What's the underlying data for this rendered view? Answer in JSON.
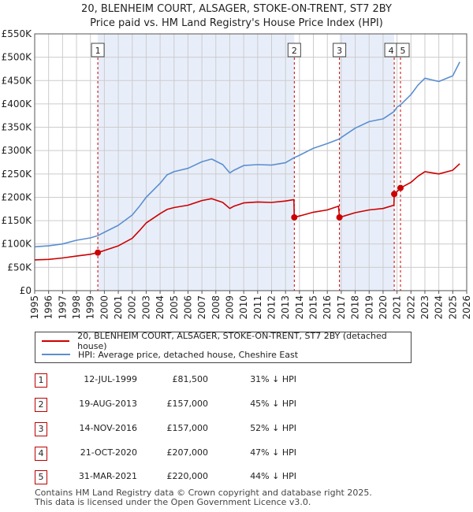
{
  "header": {
    "title_line1": "20, BLENHEIM COURT, ALSAGER, STOKE-ON-TRENT, ST7 2BY",
    "title_line2": "Price paid vs. HM Land Registry's House Price Index (HPI)"
  },
  "colors": {
    "red": "#cc0000",
    "blue": "#5b8fd0",
    "shade": "#e8eef9",
    "grid": "#cccccc"
  },
  "chart_data": {
    "type": "line",
    "title": "Price paid vs. HM Land Registry's House Price Index (HPI)",
    "xlim": [
      1995,
      2026
    ],
    "ylim": [
      0,
      550000
    ],
    "y_ticks": [
      0,
      50000,
      100000,
      150000,
      200000,
      250000,
      300000,
      350000,
      400000,
      450000,
      500000,
      550000
    ],
    "y_tick_labels": [
      "£0",
      "£50K",
      "£100K",
      "£150K",
      "£200K",
      "£250K",
      "£300K",
      "£350K",
      "£400K",
      "£450K",
      "£500K",
      "£550K"
    ],
    "x_ticks": [
      1995,
      1996,
      1997,
      1998,
      1999,
      2000,
      2001,
      2002,
      2003,
      2004,
      2005,
      2006,
      2007,
      2008,
      2009,
      2010,
      2011,
      2012,
      2013,
      2014,
      2015,
      2016,
      2017,
      2018,
      2019,
      2020,
      2021,
      2022,
      2023,
      2024,
      2025,
      2026
    ],
    "x_tick_labels": [
      "1995",
      "1996",
      "1997",
      "1998",
      "1999",
      "2000",
      "2001",
      "2002",
      "2003",
      "2004",
      "2005",
      "2006",
      "2007",
      "2008",
      "2009",
      "2010",
      "2011",
      "2012",
      "2013",
      "2014",
      "2015",
      "2016",
      "2017",
      "2018",
      "2019",
      "2020",
      "2021",
      "2022",
      "2023",
      "2024",
      "2025",
      "2026"
    ],
    "shaded_ranges": [
      [
        1999.53,
        2013.63
      ],
      [
        2016.87,
        2020.8
      ]
    ],
    "series": [
      {
        "name": "HPI: Average price, detached house, Cheshire East",
        "color": "#5b8fd0",
        "x": [
          1995.0,
          1996.0,
          1997.0,
          1998.0,
          1999.0,
          1999.53,
          2000.0,
          2001.0,
          2002.0,
          2002.5,
          2003.0,
          2004.0,
          2004.5,
          2005.0,
          2006.0,
          2007.0,
          2007.7,
          2008.5,
          2009.0,
          2009.3,
          2010.0,
          2011.0,
          2012.0,
          2013.0,
          2013.63,
          2014.0,
          2015.0,
          2016.0,
          2016.87,
          2017.0,
          2018.0,
          2019.0,
          2020.0,
          2020.8,
          2021.0,
          2021.25,
          2022.0,
          2022.5,
          2023.0,
          2024.0,
          2025.0,
          2025.5
        ],
        "values": [
          94000,
          96000,
          100000,
          108000,
          113000,
          118000,
          125000,
          140000,
          162000,
          180000,
          200000,
          230000,
          248000,
          255000,
          262000,
          276000,
          282000,
          270000,
          252000,
          258000,
          268000,
          270000,
          269000,
          274000,
          285000,
          290000,
          305000,
          315000,
          325000,
          328000,
          348000,
          362000,
          368000,
          384000,
          393000,
          398000,
          420000,
          440000,
          455000,
          448000,
          460000,
          490000
        ]
      },
      {
        "name": "20, BLENHEIM COURT, ALSAGER, STOKE-ON-TRENT, ST7 2BY (detached house)",
        "color": "#cc0000",
        "x": [
          1995.0,
          1996.0,
          1997.0,
          1998.0,
          1999.0,
          1999.53,
          2000.0,
          2001.0,
          2002.0,
          2002.5,
          2003.0,
          2004.0,
          2004.5,
          2005.0,
          2006.0,
          2007.0,
          2007.7,
          2008.5,
          2009.0,
          2009.3,
          2010.0,
          2011.0,
          2012.0,
          2013.0,
          2013.6,
          2013.63,
          2014.0,
          2015.0,
          2016.0,
          2016.8,
          2016.87,
          2017.0,
          2018.0,
          2019.0,
          2020.0,
          2020.78,
          2020.8,
          2021.0,
          2021.25,
          2022.0,
          2022.5,
          2023.0,
          2024.0,
          2025.0,
          2025.5
        ],
        "values": [
          66000,
          67000,
          70000,
          74000,
          78000,
          81500,
          86000,
          96000,
          112000,
          128000,
          145000,
          165000,
          174000,
          178000,
          183000,
          193000,
          197000,
          189000,
          176000,
          181000,
          188000,
          190000,
          189000,
          192000,
          195000,
          157000,
          160000,
          168000,
          173000,
          181000,
          157000,
          158000,
          167000,
          173000,
          176000,
          183000,
          207000,
          212000,
          220000,
          232000,
          245000,
          255000,
          250000,
          258000,
          272000
        ]
      }
    ],
    "sales": [
      {
        "label": "1",
        "x": 1999.53,
        "value": 81500
      },
      {
        "label": "2",
        "x": 2013.63,
        "value": 157000
      },
      {
        "label": "3",
        "x": 2016.87,
        "value": 157000
      },
      {
        "label": "4",
        "x": 2020.8,
        "value": 207000
      },
      {
        "label": "5",
        "x": 2021.25,
        "value": 220000
      }
    ]
  },
  "legend": {
    "property_label": "20, BLENHEIM COURT, ALSAGER, STOKE-ON-TRENT, ST7 2BY (detached house)",
    "hpi_label": "HPI: Average price, detached house, Cheshire East"
  },
  "transactions": [
    {
      "num": "1",
      "date": "12-JUL-1999",
      "price": "£81,500",
      "hpi": "31% ↓ HPI"
    },
    {
      "num": "2",
      "date": "19-AUG-2013",
      "price": "£157,000",
      "hpi": "45% ↓ HPI"
    },
    {
      "num": "3",
      "date": "14-NOV-2016",
      "price": "£157,000",
      "hpi": "52% ↓ HPI"
    },
    {
      "num": "4",
      "date": "21-OCT-2020",
      "price": "£207,000",
      "hpi": "47% ↓ HPI"
    },
    {
      "num": "5",
      "date": "31-MAR-2021",
      "price": "£220,000",
      "hpi": "44% ↓ HPI"
    }
  ],
  "footer": {
    "line1": "Contains HM Land Registry data © Crown copyright and database right 2025.",
    "line2": "This data is licensed under the Open Government Licence v3.0."
  }
}
